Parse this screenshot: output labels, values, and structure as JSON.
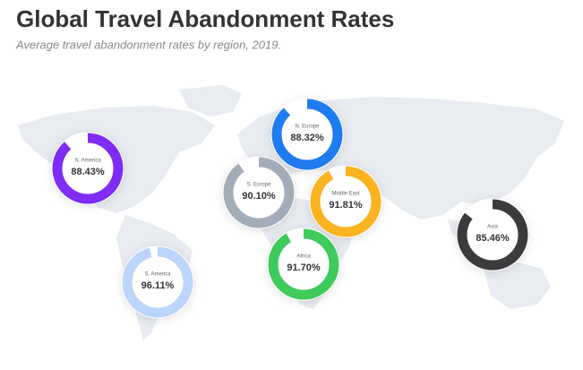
{
  "chart_data": {
    "type": "donut",
    "title": "Global Travel Abandonment Rates",
    "subtitle": "Average travel abandonment rates by region, 2019.",
    "categories": [
      "N. America",
      "N. Europe",
      "S. Europe",
      "Middle East",
      "Africa",
      "S. America",
      "Asia"
    ],
    "values": [
      88.43,
      88.32,
      90.1,
      91.81,
      91.7,
      96.11,
      85.46
    ],
    "value_labels": [
      "88.43%",
      "88.32%",
      "90.10%",
      "91.81%",
      "91.70%",
      "96.11%",
      "85.46%"
    ],
    "colors": [
      "#7f2cf5",
      "#1f7bf0",
      "#a3adb9",
      "#fbb320",
      "#3ecb5c",
      "#bcd5fb",
      "#3b3b3d"
    ]
  }
}
